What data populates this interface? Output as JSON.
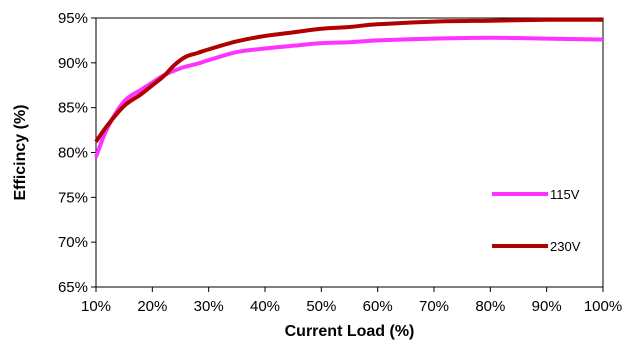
{
  "chart_data": {
    "type": "line",
    "title": "",
    "xlabel": "Current Load (%)",
    "ylabel": "Efficincy (%)",
    "xlim": [
      10,
      100
    ],
    "ylim": [
      65,
      95
    ],
    "x_ticks": [
      10,
      20,
      30,
      40,
      50,
      60,
      70,
      80,
      90,
      100
    ],
    "x_tick_labels": [
      "10%",
      "20%",
      "30%",
      "40%",
      "50%",
      "60%",
      "70%",
      "80%",
      "90%",
      "100%"
    ],
    "y_ticks": [
      65,
      70,
      75,
      80,
      85,
      90,
      95
    ],
    "y_tick_labels": [
      "65%",
      "70%",
      "75%",
      "80%",
      "85%",
      "90%",
      "95%"
    ],
    "grid": false,
    "legend_position": "right",
    "series": [
      {
        "name": "115V",
        "color": "#ff33ff",
        "x": [
          10,
          12,
          15,
          18,
          20,
          22,
          25,
          28,
          30,
          35,
          40,
          45,
          50,
          55,
          60,
          70,
          80,
          90,
          100
        ],
        "y": [
          79.5,
          82.7,
          85.7,
          87.0,
          87.8,
          88.6,
          89.4,
          89.9,
          90.3,
          91.2,
          91.6,
          91.9,
          92.2,
          92.3,
          92.5,
          92.7,
          92.8,
          92.7,
          92.6
        ]
      },
      {
        "name": "230V",
        "color": "#b00000",
        "x": [
          10,
          12,
          15,
          18,
          20,
          22,
          24,
          26,
          28,
          30,
          35,
          40,
          45,
          50,
          55,
          60,
          70,
          80,
          90,
          100
        ],
        "y": [
          81.2,
          83.0,
          85.2,
          86.5,
          87.5,
          88.5,
          89.8,
          90.7,
          91.1,
          91.5,
          92.4,
          93.0,
          93.4,
          93.8,
          94.0,
          94.3,
          94.6,
          94.7,
          94.8,
          94.8
        ]
      }
    ]
  }
}
